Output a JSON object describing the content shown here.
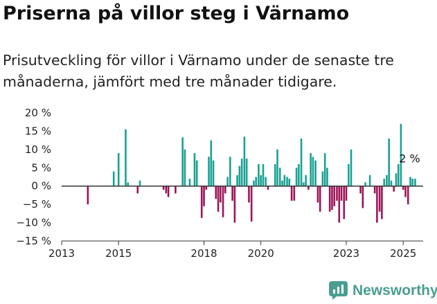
{
  "header": {
    "title": "Priserna på villor steg i Värnamo",
    "subtitle": "Prisutveckling för villor i Värnamo under de senaste tre månaderna, jämfört med tre månader tidigare."
  },
  "brand": {
    "name": "Newsworthy",
    "icon": "newsworthy-logo-icon",
    "color": "#4a9e91"
  },
  "colors": {
    "positive": "#1aa192",
    "negative": "#9c1457",
    "axis": "#333333"
  },
  "chart_data": {
    "type": "bar",
    "xlim": [
      2013,
      2025.7
    ],
    "ylim": [
      -15,
      20
    ],
    "xticks": [
      2013,
      2015,
      2018,
      2020,
      2023,
      2025
    ],
    "yticks": [
      20,
      15,
      10,
      5,
      0,
      -5,
      -10,
      -15
    ],
    "ytick_labels": [
      "20 %",
      "15 %",
      "10 %",
      "5 %",
      "0 %",
      "−5 %",
      "−10 %",
      "−15 %"
    ],
    "xlabel": "",
    "ylabel": "",
    "annotation": {
      "text": "2 %",
      "x": 2025.0,
      "y": 2
    },
    "series": [
      {
        "x": 2013.92,
        "y": -5
      },
      {
        "x": 2014.83,
        "y": 4
      },
      {
        "x": 2015.0,
        "y": 9
      },
      {
        "x": 2015.25,
        "y": 15.5
      },
      {
        "x": 2015.33,
        "y": 1
      },
      {
        "x": 2015.67,
        "y": -2
      },
      {
        "x": 2015.75,
        "y": 1.5
      },
      {
        "x": 2016.58,
        "y": -1
      },
      {
        "x": 2016.67,
        "y": -2
      },
      {
        "x": 2016.75,
        "y": -3
      },
      {
        "x": 2017.0,
        "y": -2
      },
      {
        "x": 2017.25,
        "y": 13.3
      },
      {
        "x": 2017.33,
        "y": 10
      },
      {
        "x": 2017.5,
        "y": 2
      },
      {
        "x": 2017.67,
        "y": 9
      },
      {
        "x": 2017.75,
        "y": 7
      },
      {
        "x": 2017.92,
        "y": -8.7
      },
      {
        "x": 2018.0,
        "y": -5.5
      },
      {
        "x": 2018.08,
        "y": -1
      },
      {
        "x": 2018.17,
        "y": 8
      },
      {
        "x": 2018.25,
        "y": 12.5
      },
      {
        "x": 2018.33,
        "y": 7
      },
      {
        "x": 2018.42,
        "y": -3.5
      },
      {
        "x": 2018.5,
        "y": -7
      },
      {
        "x": 2018.58,
        "y": -4.5
      },
      {
        "x": 2018.67,
        "y": -8.5
      },
      {
        "x": 2018.75,
        "y": -2
      },
      {
        "x": 2018.83,
        "y": 2.5
      },
      {
        "x": 2018.92,
        "y": 8
      },
      {
        "x": 2019.0,
        "y": -4
      },
      {
        "x": 2019.08,
        "y": -10
      },
      {
        "x": 2019.17,
        "y": 3
      },
      {
        "x": 2019.25,
        "y": 5.5
      },
      {
        "x": 2019.33,
        "y": 7.5
      },
      {
        "x": 2019.42,
        "y": 13.5
      },
      {
        "x": 2019.5,
        "y": 7.5
      },
      {
        "x": 2019.58,
        "y": -4.5
      },
      {
        "x": 2019.67,
        "y": -9.7
      },
      {
        "x": 2019.75,
        "y": 1.5
      },
      {
        "x": 2019.83,
        "y": 2.5
      },
      {
        "x": 2019.92,
        "y": 6
      },
      {
        "x": 2020.0,
        "y": 3
      },
      {
        "x": 2020.08,
        "y": 6
      },
      {
        "x": 2020.17,
        "y": 2.5
      },
      {
        "x": 2020.25,
        "y": -1
      },
      {
        "x": 2020.5,
        "y": 6
      },
      {
        "x": 2020.58,
        "y": 10
      },
      {
        "x": 2020.67,
        "y": 5
      },
      {
        "x": 2020.75,
        "y": 1.5
      },
      {
        "x": 2020.83,
        "y": 3
      },
      {
        "x": 2020.92,
        "y": 2.5
      },
      {
        "x": 2021.0,
        "y": 2
      },
      {
        "x": 2021.08,
        "y": -4
      },
      {
        "x": 2021.17,
        "y": -4
      },
      {
        "x": 2021.25,
        "y": 5
      },
      {
        "x": 2021.33,
        "y": 6
      },
      {
        "x": 2021.42,
        "y": 13
      },
      {
        "x": 2021.5,
        "y": 1
      },
      {
        "x": 2021.58,
        "y": 3
      },
      {
        "x": 2021.67,
        "y": -1
      },
      {
        "x": 2021.75,
        "y": 9
      },
      {
        "x": 2021.83,
        "y": 8
      },
      {
        "x": 2021.92,
        "y": 7
      },
      {
        "x": 2022.0,
        "y": -4.5
      },
      {
        "x": 2022.08,
        "y": -7
      },
      {
        "x": 2022.17,
        "y": 4
      },
      {
        "x": 2022.25,
        "y": 9
      },
      {
        "x": 2022.33,
        "y": 5
      },
      {
        "x": 2022.42,
        "y": -7
      },
      {
        "x": 2022.5,
        "y": -6.5
      },
      {
        "x": 2022.58,
        "y": -5.5
      },
      {
        "x": 2022.67,
        "y": -4
      },
      {
        "x": 2022.75,
        "y": -10
      },
      {
        "x": 2022.83,
        "y": -4
      },
      {
        "x": 2022.92,
        "y": -9
      },
      {
        "x": 2023.0,
        "y": -4
      },
      {
        "x": 2023.08,
        "y": 6
      },
      {
        "x": 2023.17,
        "y": 10
      },
      {
        "x": 2023.5,
        "y": -2
      },
      {
        "x": 2023.58,
        "y": -6
      },
      {
        "x": 2023.67,
        "y": 1
      },
      {
        "x": 2023.83,
        "y": 3
      },
      {
        "x": 2024.0,
        "y": -2
      },
      {
        "x": 2024.08,
        "y": -10
      },
      {
        "x": 2024.17,
        "y": -7
      },
      {
        "x": 2024.25,
        "y": -9
      },
      {
        "x": 2024.33,
        "y": 2
      },
      {
        "x": 2024.42,
        "y": 3
      },
      {
        "x": 2024.5,
        "y": 13
      },
      {
        "x": 2024.58,
        "y": 1.5
      },
      {
        "x": 2024.67,
        "y": -1.5
      },
      {
        "x": 2024.75,
        "y": 3.5
      },
      {
        "x": 2024.83,
        "y": 6
      },
      {
        "x": 2024.92,
        "y": 17
      },
      {
        "x": 2025.0,
        "y": -1
      },
      {
        "x": 2025.08,
        "y": -3
      },
      {
        "x": 2025.17,
        "y": -5
      },
      {
        "x": 2025.25,
        "y": 2.5
      },
      {
        "x": 2025.33,
        "y": 2
      },
      {
        "x": 2025.42,
        "y": 2
      }
    ]
  }
}
